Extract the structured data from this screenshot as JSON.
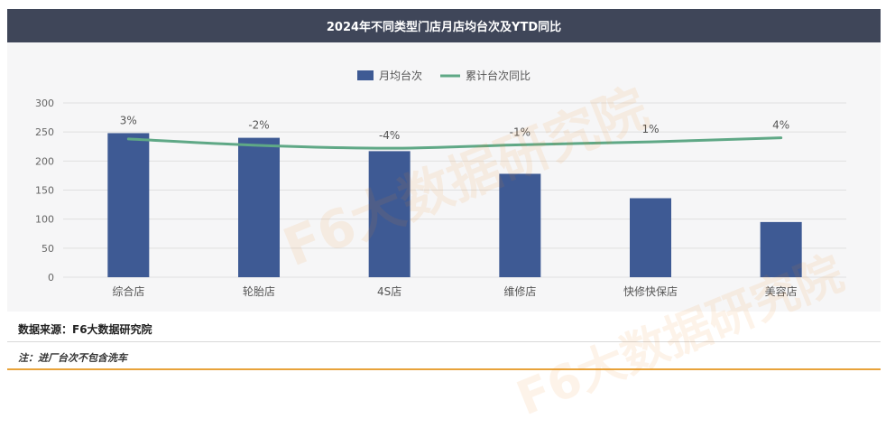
{
  "chart_title": "2024年不同类型门店月店均台次及YTD同比",
  "source_text": "数据来源：F6大数据研究院",
  "note_text": "注：进厂台次不包含洗车",
  "watermark_text": "F6大数据研究院",
  "colors": {
    "bar": "#3e5a94",
    "line": "#5fa886",
    "title_bg": "#3f4659",
    "accent": "#e8a33a"
  },
  "chart_data": {
    "type": "bar",
    "categories": [
      "综合店",
      "轮胎店",
      "4S店",
      "维修店",
      "快修快保店",
      "美容店"
    ],
    "series": [
      {
        "name": "月均台次",
        "type": "bar",
        "values": [
          248,
          240,
          217,
          178,
          136,
          95
        ]
      },
      {
        "name": "累计台次同比",
        "type": "line",
        "values": [
          238,
          227,
          222,
          228,
          233,
          240
        ]
      }
    ],
    "data_labels": [
      "3%",
      "-2%",
      "-4%",
      "-1%",
      "1%",
      "4%"
    ],
    "ylim": [
      0,
      300
    ],
    "yticks": [
      0,
      50,
      100,
      150,
      200,
      250,
      300
    ],
    "grid": true,
    "legend_position": "top-center"
  }
}
